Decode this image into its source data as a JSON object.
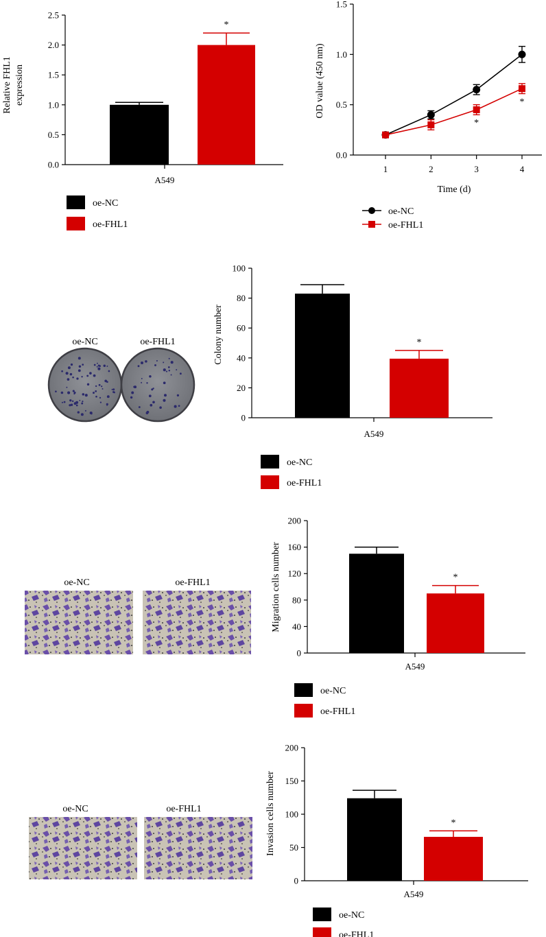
{
  "colors": {
    "oe_nc": "#000000",
    "oe_fhl1": "#d40000",
    "axis": "#000000"
  },
  "chart_data": [
    {
      "type": "bar",
      "id": "fhl1-expression",
      "categories": [
        "A549"
      ],
      "series": [
        {
          "name": "oe-NC",
          "values": [
            1.0
          ],
          "errors": [
            0.04
          ],
          "color": "#000000"
        },
        {
          "name": "oe-FHL1",
          "values": [
            2.0
          ],
          "errors": [
            0.2
          ],
          "color": "#d40000"
        }
      ],
      "significance": [
        "",
        "*"
      ],
      "ylabel_lines": [
        "Relative FHL1",
        "expression"
      ],
      "xlabel": "",
      "ylim": [
        0,
        2.5
      ],
      "yticks": [
        0,
        0.5,
        1,
        1.5,
        2,
        2.5
      ],
      "ytick_labels": [
        "0.0",
        "0.5",
        "1.0",
        "1.5",
        "2.0",
        "2.5"
      ],
      "legend_position": "bottom"
    },
    {
      "type": "line",
      "id": "cck8-od",
      "x": [
        1,
        2,
        3,
        4
      ],
      "series": [
        {
          "name": "oe-NC",
          "values": [
            0.2,
            0.4,
            0.65,
            1.0
          ],
          "errors": [
            0.02,
            0.04,
            0.05,
            0.08
          ],
          "marker": "circle",
          "color": "#000000"
        },
        {
          "name": "oe-FHL1",
          "values": [
            0.2,
            0.3,
            0.45,
            0.66
          ],
          "errors": [
            0.02,
            0.05,
            0.05,
            0.05
          ],
          "marker": "square",
          "color": "#d40000"
        }
      ],
      "significance": [
        {
          "x": 3,
          "y": 0.32,
          "label": "*"
        },
        {
          "x": 4,
          "y": 0.53,
          "label": "*"
        }
      ],
      "xlabel": "Time (d)",
      "ylabel": "OD value (450 nm)",
      "xlim": [
        0.5,
        4.5
      ],
      "ylim": [
        0,
        1.5
      ],
      "xticks": [
        1,
        2,
        3,
        4
      ],
      "xtick_labels": [
        "1",
        "2",
        "3",
        "4"
      ],
      "yticks": [
        0,
        0.5,
        1,
        1.5
      ],
      "ytick_labels": [
        "0.0",
        "0.5",
        "1.0",
        "1.5"
      ],
      "legend_position": "bottom"
    },
    {
      "type": "bar",
      "id": "colony",
      "categories": [
        "A549"
      ],
      "series": [
        {
          "name": "oe-NC",
          "values": [
            83
          ],
          "errors": [
            6
          ],
          "color": "#000000"
        },
        {
          "name": "oe-FHL1",
          "values": [
            39.5
          ],
          "errors": [
            5.5
          ],
          "color": "#d40000"
        }
      ],
      "significance": [
        "",
        "*"
      ],
      "ylabel": "Colony number",
      "ylim": [
        0,
        100
      ],
      "yticks": [
        0,
        20,
        40,
        60,
        80,
        100
      ],
      "ytick_labels": [
        "0",
        "20",
        "40",
        "60",
        "80",
        "100"
      ],
      "legend_position": "bottom",
      "image_labels": [
        "oe-NC",
        "oe-FHL1"
      ]
    },
    {
      "type": "bar",
      "id": "migration",
      "categories": [
        "A549"
      ],
      "series": [
        {
          "name": "oe-NC",
          "values": [
            150
          ],
          "errors": [
            10
          ],
          "color": "#000000"
        },
        {
          "name": "oe-FHL1",
          "values": [
            90
          ],
          "errors": [
            12
          ],
          "color": "#d40000"
        }
      ],
      "significance": [
        "",
        "*"
      ],
      "ylabel": "Migration cells number",
      "ylim": [
        0,
        200
      ],
      "yticks": [
        0,
        40,
        80,
        120,
        160,
        200
      ],
      "ytick_labels": [
        "0",
        "40",
        "80",
        "120",
        "160",
        "200"
      ],
      "legend_position": "bottom",
      "image_labels": [
        "oe-NC",
        "oe-FHL1"
      ]
    },
    {
      "type": "bar",
      "id": "invasion",
      "categories": [
        "A549"
      ],
      "series": [
        {
          "name": "oe-NC",
          "values": [
            124
          ],
          "errors": [
            12
          ],
          "color": "#000000"
        },
        {
          "name": "oe-FHL1",
          "values": [
            66
          ],
          "errors": [
            9
          ],
          "color": "#d40000"
        }
      ],
      "significance": [
        "",
        "*"
      ],
      "ylabel": "Invasion cells number",
      "ylim": [
        0,
        200
      ],
      "yticks": [
        0,
        50,
        100,
        150,
        200
      ],
      "ytick_labels": [
        "0",
        "50",
        "100",
        "150",
        "200"
      ],
      "legend_position": "bottom",
      "image_labels": [
        "oe-NC",
        "oe-FHL1"
      ]
    }
  ]
}
